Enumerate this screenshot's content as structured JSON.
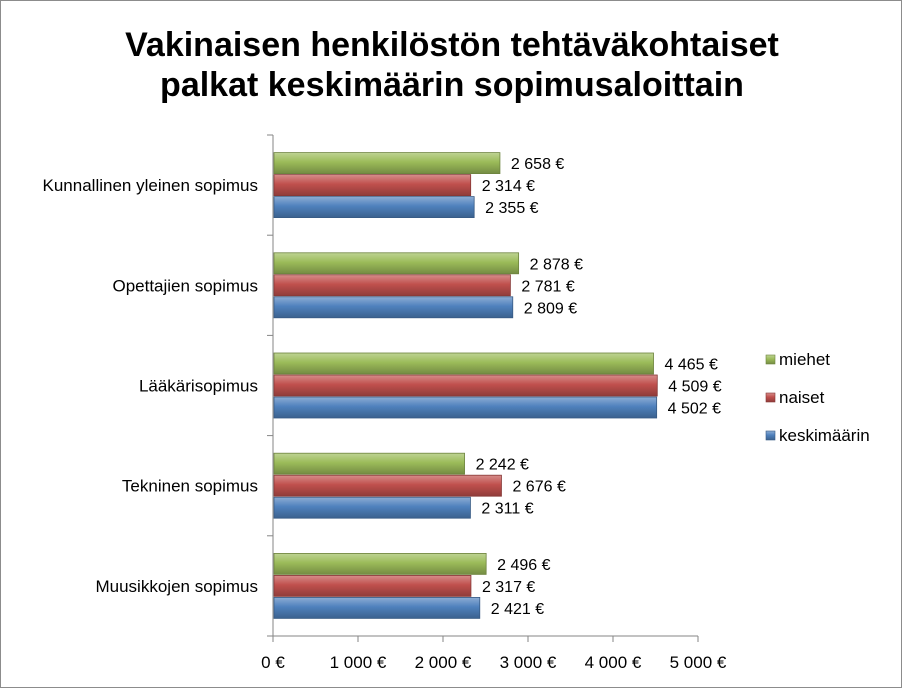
{
  "chart_data": {
    "type": "bar",
    "orientation": "horizontal",
    "title": [
      "Vakinaisen henkilöstön tehtäväkohtaiset",
      "palkat keskimäärin sopimusaloittain"
    ],
    "categories": [
      "Kunnallinen yleinen sopimus",
      "Opettajien sopimus",
      "Lääkärisopimus",
      "Tekninen sopimus",
      "Muusikkojen sopimus"
    ],
    "series": [
      {
        "name": "miehet",
        "color": "#9bbb59",
        "values": [
          2658,
          2878,
          4465,
          2242,
          2496
        ],
        "labels": [
          "2 658 €",
          "2 878 €",
          "4 465 €",
          "2 242 €",
          "2 496 €"
        ]
      },
      {
        "name": "naiset",
        "color": "#c0504d",
        "values": [
          2314,
          2781,
          4509,
          2676,
          2317
        ],
        "labels": [
          "2 314 €",
          "2 781 €",
          "4 509 €",
          "2 676 €",
          "2 317 €"
        ]
      },
      {
        "name": "keskimäärin",
        "color": "#4f81bd",
        "values": [
          2355,
          2809,
          4502,
          2311,
          2421
        ],
        "labels": [
          "2 355 €",
          "2 809 €",
          "4 502 €",
          "2 311 €",
          "2 421 €"
        ]
      }
    ],
    "xlim": [
      0,
      5000
    ],
    "x_ticks": [
      0,
      1000,
      2000,
      3000,
      4000,
      5000
    ],
    "x_tick_labels": [
      "0 €",
      "1 000 €",
      "2 000 €",
      "3 000 €",
      "4 000 €",
      "5 000 €"
    ],
    "grid": false,
    "legend_position": "right"
  }
}
